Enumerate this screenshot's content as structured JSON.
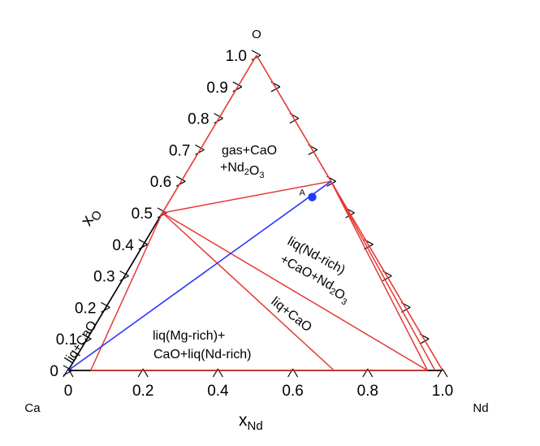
{
  "chart_data": {
    "type": "ternary phase diagram",
    "vertices": {
      "top": "O",
      "left": "Ca",
      "right": "Nd"
    },
    "axes": {
      "x": {
        "label_main": "x",
        "label_sub": "Nd",
        "ticks": [
          "0",
          "0.2",
          "0.4",
          "0.6",
          "0.8",
          "1.0"
        ],
        "tick_values": [
          0,
          0.2,
          0.4,
          0.6,
          0.8,
          1.0
        ]
      },
      "y": {
        "label_main": "x",
        "label_sub": "O",
        "ticks": [
          "0",
          "0.1",
          "0.2",
          "0.3",
          "0.4",
          "0.5",
          "0.6",
          "0.7",
          "0.8",
          "0.9",
          "1.0"
        ],
        "tick_values": [
          0,
          0.1,
          0.2,
          0.3,
          0.4,
          0.5,
          0.6,
          0.7,
          0.8,
          0.9,
          1.0
        ]
      }
    },
    "phase_points": {
      "CaO": {
        "x_Nd": 0.0,
        "x_O": 0.5
      },
      "Nd2O3": {
        "x_Nd": 0.4,
        "x_O": 0.6
      }
    },
    "red_tie_lines": [
      {
        "from": {
          "x_Nd": 0.0,
          "x_O": 0.5
        },
        "to": {
          "x_Nd": 0.4,
          "x_O": 0.6
        }
      },
      {
        "from": {
          "x_Nd": 0.0,
          "x_O": 0.5
        },
        "to": {
          "x_Nd": 0.06,
          "x_O": 0.0
        }
      },
      {
        "from": {
          "x_Nd": 0.0,
          "x_O": 0.5
        },
        "to": {
          "x_Nd": 0.71,
          "x_O": 0.0
        }
      },
      {
        "from": {
          "x_Nd": 0.0,
          "x_O": 0.5
        },
        "to": {
          "x_Nd": 0.96,
          "x_O": 0.0
        }
      },
      {
        "from": {
          "x_Nd": 0.4,
          "x_O": 0.6
        },
        "to": {
          "x_Nd": 0.96,
          "x_O": 0.0
        }
      },
      {
        "from": {
          "x_Nd": 0.4,
          "x_O": 0.6
        },
        "to": {
          "x_Nd": 0.98,
          "x_O": 0.0
        }
      },
      {
        "from": {
          "x_Nd": 0.06,
          "x_O": 0.0
        },
        "to": {
          "x_Nd": 0.96,
          "x_O": 0.0
        }
      }
    ],
    "blue_line": {
      "from": {
        "x_Nd": 0.0,
        "x_O": 0.0
      },
      "to": {
        "x_Nd": 0.4,
        "x_O": 0.6
      }
    },
    "point": {
      "label": "A",
      "x_Nd": 0.375,
      "x_O": 0.55,
      "color": "#1f3cff"
    },
    "region_labels": [
      {
        "id": "gas-cao-nd2o3",
        "lines": [
          "gas+CaO",
          "+Nd2O3"
        ]
      },
      {
        "id": "liq-nd-rich",
        "lines": [
          "liq(Nd-rich)",
          "+CaO+Nd2O3"
        ]
      },
      {
        "id": "liq-cao-right",
        "lines": [
          "liq+CaO"
        ]
      },
      {
        "id": "liq-mg-rich",
        "lines": [
          "liq(Mg-rich)+",
          "CaO+liq(Nd-rich)"
        ]
      },
      {
        "id": "liq-cao-left",
        "lines": [
          "liq+CaO"
        ]
      }
    ],
    "colors": {
      "phase_lines": "#e53935",
      "blue_line": "#2933ff",
      "axes": "#000000"
    }
  }
}
